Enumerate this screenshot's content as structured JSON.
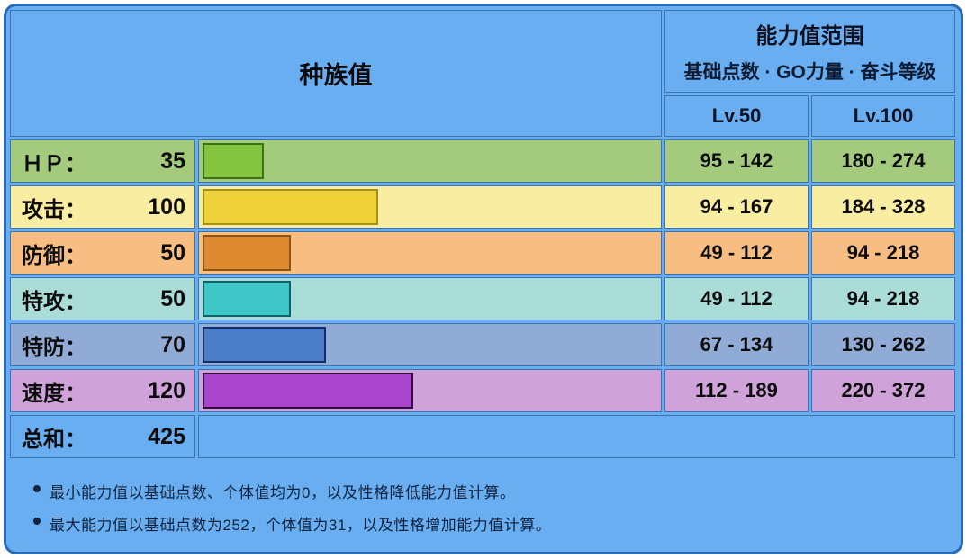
{
  "header": {
    "left_title": "种族值",
    "right_title": "能力值范围",
    "right_subtitle": "基础点数 · GO力量 · 奋斗等级",
    "col_lv50": "Lv.50",
    "col_lv100": "Lv.100"
  },
  "stats": [
    {
      "label": "ＨＰ：",
      "value": 35,
      "lv50": "95 - 142",
      "lv100": "180 - 274",
      "row_bg": "#a4cb7d",
      "bar_fill": "#84c43e",
      "bar_border": "#3a7316"
    },
    {
      "label": "攻击：",
      "value": 100,
      "lv50": "94 - 167",
      "lv100": "184 - 328",
      "row_bg": "#f9eda2",
      "bar_fill": "#efd23a",
      "bar_border": "#a68f1a"
    },
    {
      "label": "防御：",
      "value": 50,
      "lv50": "49 - 112",
      "lv100": "94 - 218",
      "row_bg": "#f7bd83",
      "bar_fill": "#dd8a31",
      "bar_border": "#8f5410"
    },
    {
      "label": "特攻：",
      "value": 50,
      "lv50": "49 - 112",
      "lv100": "94 - 218",
      "row_bg": "#aadcd8",
      "bar_fill": "#3fc7c7",
      "bar_border": "#0e5f66"
    },
    {
      "label": "特防：",
      "value": 70,
      "lv50": "67 - 134",
      "lv100": "130 - 262",
      "row_bg": "#8fabd6",
      "bar_fill": "#4b7dc8",
      "bar_border": "#132f63"
    },
    {
      "label": "速度：",
      "value": 120,
      "lv50": "112 - 189",
      "lv100": "220 - 372",
      "row_bg": "#cfa3d9",
      "bar_fill": "#a845cc",
      "bar_border": "#340b43"
    }
  ],
  "total": {
    "label": "总和：",
    "value": 425
  },
  "notes": [
    "最小能力值以基础点数、个体值均为0，以及性格降低能力值计算。",
    "最大能力值以基础点数为252，个体值为31，以及性格增加能力值计算。"
  ],
  "colors": {
    "panel_background": "#69aef0",
    "panel_border": "#2b6cb8",
    "grid_line": "#3b72b0",
    "text": "#0b0b0b"
  },
  "chart_data": {
    "type": "bar",
    "title": "种族值",
    "categories": [
      "ＨＰ",
      "攻击",
      "防御",
      "特攻",
      "特防",
      "速度"
    ],
    "values": [
      35,
      100,
      50,
      50,
      70,
      120
    ],
    "total": 425,
    "xlim": [
      0,
      255
    ],
    "orientation": "horizontal",
    "series_ranges": {
      "lv50_min": [
        95,
        94,
        49,
        49,
        67,
        112
      ],
      "lv50_max": [
        142,
        167,
        112,
        112,
        134,
        189
      ],
      "lv100_min": [
        180,
        184,
        94,
        94,
        130,
        220
      ],
      "lv100_max": [
        274,
        328,
        218,
        218,
        262,
        372
      ]
    }
  }
}
